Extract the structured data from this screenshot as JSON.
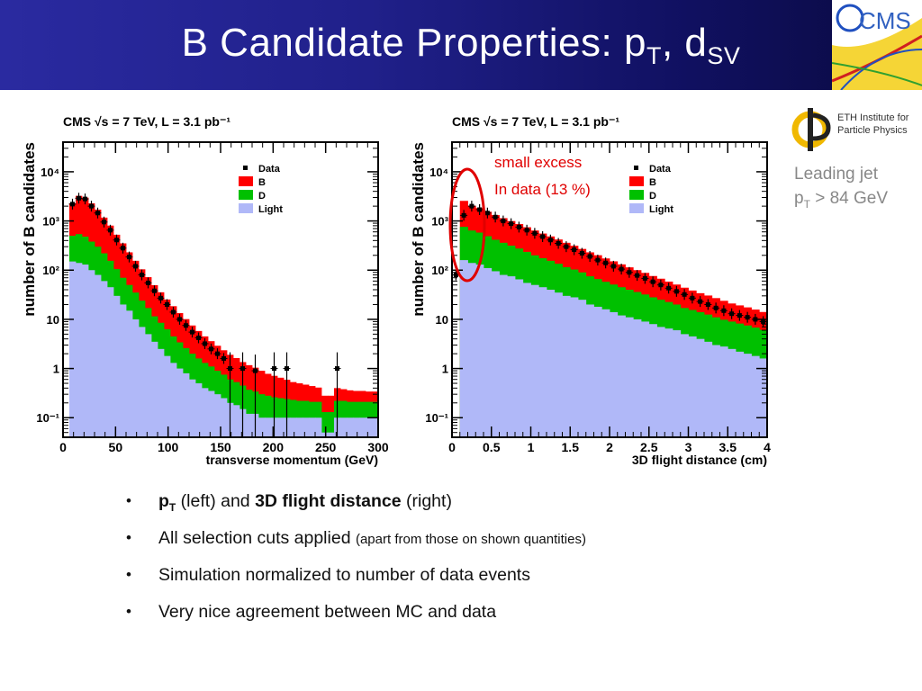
{
  "slide": {
    "title_main": "B Candidate Properties: p",
    "title_sub1": "T",
    "title_mid": ", d",
    "title_sub2": "SV"
  },
  "logos": {
    "cms_text": "CMS",
    "eth_line1": "ETH Institute for",
    "eth_line2": "Particle Physics"
  },
  "side_note": {
    "line1": "Leading jet",
    "line2_a": "p",
    "line2_sub": "T",
    "line2_b": " > 84 GeV"
  },
  "annotation": {
    "line1": "small excess",
    "line2": "In data (13 %)",
    "color": "#e00000"
  },
  "bullets": [
    {
      "bold1": "p",
      "bold1_sub": "T",
      "text1": " (left) and ",
      "bold2": "3D flight distance",
      "text2": " (right)"
    },
    {
      "text": "All selection cuts applied ",
      "small": "(apart from those on shown quantities)"
    },
    {
      "text": "Simulation normalized to number of data events"
    },
    {
      "text": "Very nice agreement between MC and data"
    }
  ],
  "colors": {
    "B": "#ff0000",
    "D": "#00c000",
    "Light": "#b0b8f8",
    "Data": "#000000"
  },
  "chart_data": [
    {
      "type": "area",
      "header": "CMS   √s = 7 TeV, L = 3.1 pb⁻¹",
      "xlabel": "transverse momentum (GeV)",
      "ylabel": "number of B candidates",
      "log_y": true,
      "xlim": [
        0,
        300
      ],
      "ylim": [
        0.04,
        40000
      ],
      "x_ticks": [
        "0",
        "50",
        "100",
        "150",
        "200",
        "250",
        "300"
      ],
      "y_ticks": [
        "10⁻¹",
        "1",
        "10",
        "10²",
        "10³",
        "10⁴"
      ],
      "legend": [
        "Data",
        "B",
        "D",
        "Light"
      ],
      "bin_width": 6,
      "bin_low_edges": [
        6,
        12,
        18,
        24,
        30,
        36,
        42,
        48,
        54,
        60,
        66,
        72,
        78,
        84,
        90,
        96,
        102,
        108,
        114,
        120,
        126,
        132,
        138,
        144,
        150,
        156,
        162,
        168,
        174,
        180,
        186,
        192,
        198,
        204,
        210,
        216,
        222,
        228,
        234,
        240,
        246,
        252,
        258,
        264,
        270,
        276,
        282,
        288,
        294
      ],
      "series": [
        {
          "name": "Light",
          "values": [
            150,
            140,
            130,
            100,
            80,
            60,
            45,
            30,
            20,
            15,
            10,
            7,
            5,
            3.5,
            2.5,
            1.8,
            1.3,
            1,
            0.8,
            0.6,
            0.5,
            0.4,
            0.35,
            0.3,
            0.25,
            0.2,
            0.18,
            0.15,
            0.12,
            0.12,
            0.1,
            0.1,
            0.1,
            0.1,
            0.1,
            0.1,
            0.1,
            0.1,
            0.1,
            0.1,
            0.05,
            0.05,
            0.1,
            0.1,
            0.1,
            0.1,
            0.1,
            0.1,
            0.1
          ]
        },
        {
          "name": "D",
          "values": [
            350,
            400,
            350,
            280,
            220,
            160,
            110,
            75,
            50,
            35,
            25,
            17,
            12,
            8,
            6,
            4.5,
            3.2,
            2.4,
            1.8,
            1.4,
            1.1,
            0.9,
            0.75,
            0.6,
            0.5,
            0.4,
            0.35,
            0.3,
            0.25,
            0.22,
            0.2,
            0.18,
            0.16,
            0.15,
            0.14,
            0.13,
            0.12,
            0.12,
            0.11,
            0.11,
            0.08,
            0.08,
            0.12,
            0.12,
            0.11,
            0.11,
            0.11,
            0.11,
            0.11
          ]
        },
        {
          "name": "B",
          "values": [
            1800,
            2700,
            2500,
            1900,
            1400,
            950,
            650,
            420,
            280,
            180,
            120,
            80,
            55,
            38,
            27,
            19,
            14,
            10,
            7.5,
            5.5,
            4.2,
            3.2,
            2.5,
            2,
            1.6,
            1.3,
            1.1,
            0.9,
            0.8,
            0.7,
            0.6,
            0.5,
            0.45,
            0.4,
            0.35,
            0.3,
            0.28,
            0.25,
            0.23,
            0.2,
            0.15,
            0.15,
            0.18,
            0.16,
            0.15,
            0.14,
            0.14,
            0.13,
            0.13
          ]
        }
      ],
      "data_points": {
        "x": [
          3,
          9,
          15,
          21,
          27,
          33,
          39,
          45,
          51,
          57,
          63,
          69,
          75,
          81,
          87,
          93,
          99,
          105,
          111,
          117,
          123,
          129,
          135,
          141,
          147,
          153,
          159,
          165,
          171,
          177,
          183,
          189,
          195,
          201,
          207,
          213,
          219,
          225,
          231,
          237,
          243,
          249,
          255,
          261,
          267,
          273,
          279,
          285,
          291,
          297
        ],
        "y": [
          null,
          2200,
          2900,
          2800,
          2000,
          1450,
          950,
          650,
          410,
          280,
          185,
          120,
          80,
          55,
          38,
          27,
          20,
          14,
          10,
          7.5,
          5.5,
          4.2,
          3.2,
          2.5,
          2,
          1.6,
          1,
          null,
          1,
          null,
          0.9,
          null,
          null,
          1,
          null,
          1,
          null,
          null,
          null,
          null,
          null,
          null,
          null,
          1,
          null,
          null,
          null,
          null,
          null,
          null
        ]
      }
    },
    {
      "type": "area",
      "header": "CMS   √s = 7 TeV, L = 3.1 pb⁻¹",
      "xlabel": "3D flight distance (cm)",
      "ylabel": "number of B candidates",
      "log_y": true,
      "xlim": [
        0,
        4
      ],
      "ylim": [
        0.04,
        40000
      ],
      "x_ticks": [
        "0",
        "0.5",
        "1",
        "1.5",
        "2",
        "2.5",
        "3",
        "3.5",
        "4"
      ],
      "y_ticks": [
        "10⁻¹",
        "1",
        "10",
        "10²",
        "10³",
        "10⁴"
      ],
      "legend": [
        "Data",
        "B",
        "D",
        "Light"
      ],
      "bin_width": 0.1,
      "bin_low_edges": [
        0.1,
        0.2,
        0.3,
        0.4,
        0.5,
        0.6,
        0.7,
        0.8,
        0.9,
        1.0,
        1.1,
        1.2,
        1.3,
        1.4,
        1.5,
        1.6,
        1.7,
        1.8,
        1.9,
        2.0,
        2.1,
        2.2,
        2.3,
        2.4,
        2.5,
        2.6,
        2.7,
        2.8,
        2.9,
        3.0,
        3.1,
        3.2,
        3.3,
        3.4,
        3.5,
        3.6,
        3.7,
        3.8,
        3.9
      ],
      "series": [
        {
          "name": "Light",
          "values": [
            160,
            140,
            130,
            110,
            95,
            80,
            75,
            65,
            55,
            50,
            45,
            40,
            35,
            30,
            28,
            25,
            20,
            18,
            16,
            14,
            12,
            11,
            10,
            9,
            8,
            7,
            6.5,
            6,
            5,
            4.5,
            4,
            3.5,
            3,
            2.8,
            2.5,
            2.2,
            2,
            1.8,
            1.6
          ]
        },
        {
          "name": "D",
          "values": [
            600,
            500,
            450,
            380,
            320,
            280,
            240,
            210,
            180,
            150,
            130,
            115,
            100,
            85,
            75,
            65,
            55,
            48,
            42,
            37,
            33,
            29,
            26,
            23,
            20,
            18,
            16,
            14,
            12,
            11,
            10,
            9,
            8,
            7,
            6.5,
            6,
            5.5,
            5,
            4.5
          ]
        },
        {
          "name": "B",
          "values": [
            1800,
            1400,
            1250,
            1050,
            900,
            780,
            680,
            590,
            510,
            440,
            380,
            330,
            285,
            245,
            210,
            180,
            155,
            135,
            115,
            100,
            86,
            74,
            64,
            56,
            48,
            42,
            36,
            31,
            27,
            23,
            20,
            18,
            16,
            14,
            12,
            11,
            10,
            9,
            8
          ]
        }
      ],
      "data_points": {
        "x": [
          0.05,
          0.15,
          0.25,
          0.35,
          0.45,
          0.55,
          0.65,
          0.75,
          0.85,
          0.95,
          1.05,
          1.15,
          1.25,
          1.35,
          1.45,
          1.55,
          1.65,
          1.75,
          1.85,
          1.95,
          2.05,
          2.15,
          2.25,
          2.35,
          2.45,
          2.55,
          2.65,
          2.75,
          2.85,
          2.95,
          3.05,
          3.15,
          3.25,
          3.35,
          3.45,
          3.55,
          3.65,
          3.75,
          3.85,
          3.95
        ],
        "y": [
          80,
          1300,
          2000,
          1700,
          1450,
          1200,
          1000,
          880,
          750,
          650,
          560,
          480,
          410,
          350,
          300,
          260,
          220,
          190,
          160,
          140,
          120,
          105,
          90,
          78,
          68,
          58,
          50,
          43,
          37,
          32,
          27,
          23,
          20,
          17,
          15,
          13,
          12,
          11,
          10,
          9
        ]
      }
    }
  ]
}
